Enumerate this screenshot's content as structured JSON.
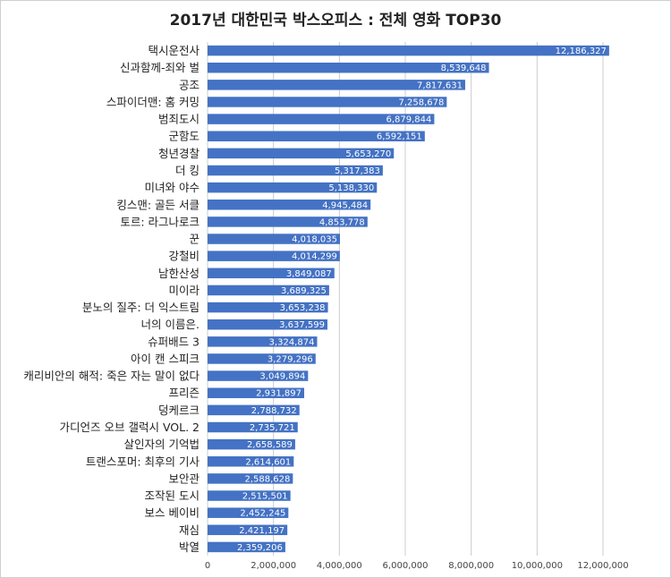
{
  "chart_data": {
    "type": "bar",
    "orientation": "horizontal",
    "title": "2017년 대한민국 박스오피스 : 전체 영화 TOP30",
    "xlabel": "",
    "ylabel": "",
    "xlim": [
      0,
      12000000
    ],
    "x_ticks": [
      "0",
      "2,000,000",
      "4,000,000",
      "6,000,000",
      "8,000,000",
      "10,000,000",
      "12,000,000"
    ],
    "x_tick_values": [
      0,
      2000000,
      4000000,
      6000000,
      8000000,
      10000000,
      12000000
    ],
    "grid": "vertical",
    "legend": "none",
    "bar_color": "#4472c4",
    "categories": [
      "택시운전사",
      "신과함께-죄와 벌",
      "공조",
      "스파이더맨: 홈 커밍",
      "범죄도시",
      "군함도",
      "청년경찰",
      "더 킹",
      "미녀와 야수",
      "킹스맨: 골든 서클",
      "토르: 라그나로크",
      "꾼",
      "강철비",
      "남한산성",
      "미이라",
      "분노의 질주: 더 익스트림",
      "너의 이름은.",
      "슈퍼배드 3",
      "아이 캔 스피크",
      "캐리비안의 해적: 죽은 자는 말이 없다",
      "프리즌",
      "덩케르크",
      "가디언즈 오브 갤럭시 VOL. 2",
      "살인자의 기억법",
      "트랜스포머: 최후의 기사",
      "보안관",
      "조작된 도시",
      "보스 베이비",
      "재심",
      "박열"
    ],
    "values": [
      12186327,
      8539648,
      7817631,
      7258678,
      6879844,
      6592151,
      5653270,
      5317383,
      5138330,
      4945484,
      4853778,
      4018035,
      4014299,
      3849087,
      3689325,
      3653238,
      3637599,
      3324874,
      3279296,
      3049894,
      2931897,
      2788732,
      2735721,
      2658589,
      2614601,
      2588628,
      2515501,
      2452245,
      2421197,
      2359206
    ],
    "value_labels": [
      "12,186,327",
      "8,539,648",
      "7,817,631",
      "7,258,678",
      "6,879,844",
      "6,592,151",
      "5,653,270",
      "5,317,383",
      "5,138,330",
      "4,945,484",
      "4,853,778",
      "4,018,035",
      "4,014,299",
      "3,849,087",
      "3,689,325",
      "3,653,238",
      "3,637,599",
      "3,324,874",
      "3,279,296",
      "3,049,894",
      "2,931,897",
      "2,788,732",
      "2,735,721",
      "2,658,589",
      "2,614,601",
      "2,588,628",
      "2,515,501",
      "2,452,245",
      "2,421,197",
      "2,359,206"
    ]
  }
}
